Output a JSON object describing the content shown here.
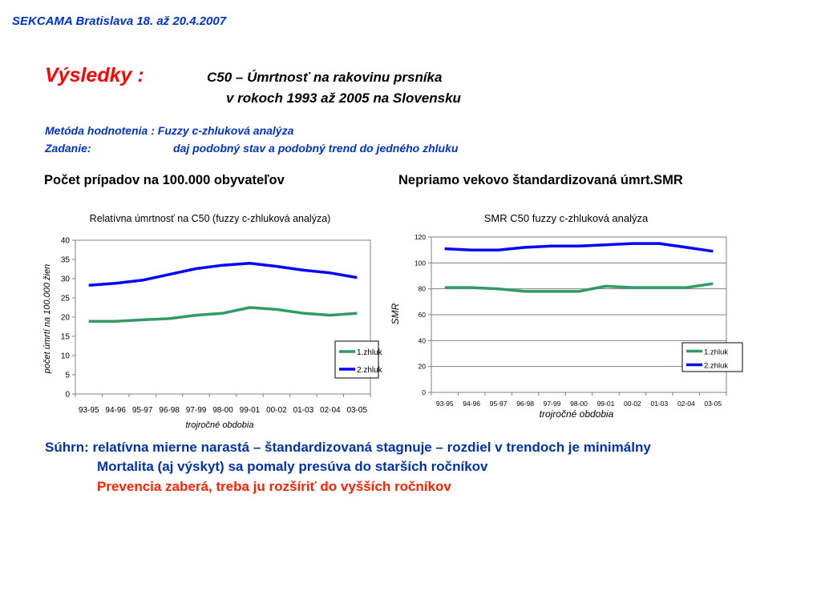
{
  "header": "SEKCAMA  Bratislava 18. až 20.4.2007",
  "results_label": "Výsledky :",
  "title_line1": "C50 – Úmrtnosť na rakovinu prsníka",
  "title_line2": "v rokoch 1993 až 2005 na Slovensku",
  "method_label": "Metóda hodnotenia :  Fuzzy c-zhluková analýza",
  "task_label": "Zadanie:",
  "task_value": "daj podobný stav a podobný trend do jedného zhluku",
  "left_heading": "Počet prípadov na 100.000 obyvateľov",
  "right_heading": "Nepriamo vekovo štandardizovaná úmrt.SMR",
  "summary_line1": "Súhrn: relatívna mierne narastá – štandardizovaná stagnuje – rozdiel v trendoch je minimálny",
  "summary_line2": "Mortalita (aj výskyt) sa pomaly presúva do starších ročníkov",
  "summary_line3": "Prevencia zaberá, treba ju rozšíriť do vyšších ročníkov",
  "colors": {
    "accent_blue": "#0033cc",
    "accent_red": "#ff0000",
    "series_green": "#339966",
    "series_blue": "#0000ff"
  },
  "chart_data": [
    {
      "type": "line",
      "title": "Relatívna úmrtnosť na C50 (fuzzy c-zhluková analýza)",
      "xlabel": "trojročné obdobia",
      "ylabel": "počet úmrtí na 100.000 žien",
      "categories": [
        "93-95",
        "94-96",
        "95-97",
        "96-98",
        "97-99",
        "98-00",
        "99-01",
        "00-02",
        "01-03",
        "02-04",
        "03-05"
      ],
      "ylim": [
        0,
        40
      ],
      "yticks": [
        0,
        5,
        10,
        15,
        20,
        25,
        30,
        35,
        40
      ],
      "grid": false,
      "legend": "right",
      "series": [
        {
          "name": "1.zhluk",
          "color": "#339966",
          "values": [
            18.9,
            18.9,
            19.3,
            19.6,
            20.5,
            21.0,
            22.5,
            22.0,
            21.0,
            20.5,
            21.0
          ]
        },
        {
          "name": "2.zhluk",
          "color": "#0000ff",
          "values": [
            28.3,
            28.8,
            29.6,
            31.1,
            32.6,
            33.5,
            34.0,
            33.2,
            32.2,
            31.5,
            30.3
          ]
        }
      ]
    },
    {
      "type": "line",
      "title": "SMR C50 fuzzy c-zhluková analýza",
      "xlabel": "trojročné obdobia",
      "ylabel": "SMR",
      "categories": [
        "93-95",
        "94-96",
        "95-97",
        "96-98",
        "97-99",
        "98-00",
        "99-01",
        "00-02",
        "01-03",
        "02-04",
        "03-05"
      ],
      "ylim": [
        0,
        120
      ],
      "yticks": [
        0,
        20,
        40,
        60,
        80,
        100,
        120
      ],
      "grid": true,
      "legend": "right",
      "series": [
        {
          "name": "1.zhluk",
          "color": "#339966",
          "values": [
            81,
            81,
            80,
            78,
            78,
            78,
            82,
            81,
            81,
            81,
            84
          ]
        },
        {
          "name": "2.zhluk",
          "color": "#0000ff",
          "values": [
            111,
            110,
            110,
            112,
            113,
            113,
            114,
            115,
            115,
            112,
            109
          ]
        }
      ]
    }
  ]
}
